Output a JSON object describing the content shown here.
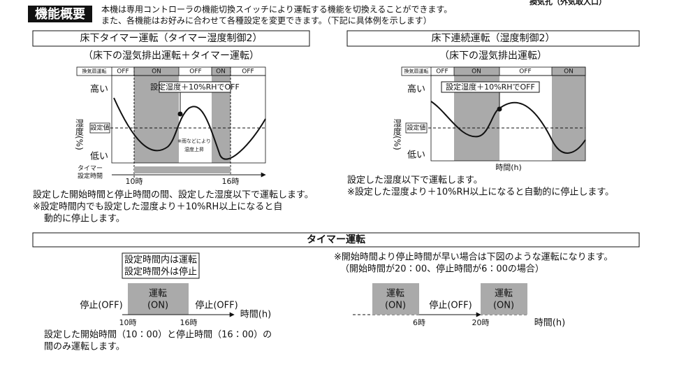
{
  "header": {
    "badge": "機能概要",
    "corner": "換気孔（外気取入口）",
    "lines": [
      "本機は専用コントローラの機能切換スイッチにより運転する機能を切換えることができます。",
      "また、各機能はお好みに合わせて各種設定を変更できます。（下記に具体例を示します）"
    ]
  },
  "left_panel": {
    "title": "床下タイマー運転（タイマー湿度制御2）",
    "subtitle": "（床下の湿気排出運転＋タイマー運転）",
    "status_label": "換気扇運転",
    "states": [
      "OFF",
      "ON",
      "OFF",
      "ON",
      "OFF"
    ],
    "high": "高い",
    "setpoint": "設定値",
    "low": "低い",
    "y_label": "湿度(%)",
    "callout": "設定湿度＋10%RHでOFF",
    "note": [
      "※雨などにより",
      "湿度上昇"
    ],
    "timer_label": [
      "タイマー",
      "設定時間"
    ],
    "start": "10時",
    "end": "16時",
    "notes": [
      "設定した開始時間と停止時間の間、設定した湿度以下で運転します。",
      "※設定時間内でも設定した湿度より＋10%RH以上になると自",
      "動的に停止します。"
    ]
  },
  "right_panel": {
    "title": "床下連続運転（湿度制御2）",
    "subtitle": "（床下の湿気排出運転）",
    "status_label": "換気扇運転",
    "states": [
      "OFF",
      "ON",
      "OFF",
      "ON"
    ],
    "high": "高い",
    "setpoint": "設定値",
    "low": "低い",
    "y_label": "湿度(%)",
    "callout": "設定湿度＋10%RHでOFF",
    "x_label": "時間(h)",
    "notes": [
      "設定した湿度以下で運転します。",
      "※設定した湿度より＋10%RH以上になると自動的に停止します。"
    ]
  },
  "timer_section": {
    "title": "タイマー運転",
    "box": [
      "設定時間内は運転",
      "設定時間外は停止"
    ],
    "off": "停止(OFF)",
    "on": [
      "運転",
      "(ON)"
    ],
    "x_label": "時間(h)",
    "start": "10時",
    "end": "16時",
    "notes": [
      "設定した開始時間（10：00）と停止時間（16：00）の",
      "間のみ運転します。"
    ],
    "right_notes": [
      "※開始時間より停止時間が早い場合は下図のような運転になります。",
      "（開始時間が20：00、停止時間が6：00の場合）"
    ],
    "right_end": "6時",
    "right_start": "20時"
  }
}
